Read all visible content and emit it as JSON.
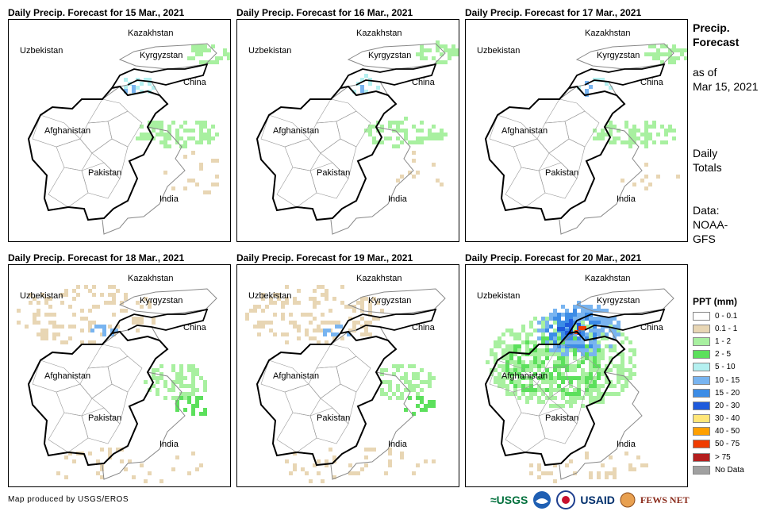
{
  "panels": [
    {
      "title": "Daily Precip. Forecast for 15 Mar., 2021",
      "coverage": "light"
    },
    {
      "title": "Daily Precip. Forecast for 16 Mar., 2021",
      "coverage": "light"
    },
    {
      "title": "Daily Precip. Forecast for 17 Mar., 2021",
      "coverage": "light"
    },
    {
      "title": "Daily Precip. Forecast for 18 Mar., 2021",
      "coverage": "moderate"
    },
    {
      "title": "Daily Precip. Forecast for 19 Mar., 2021",
      "coverage": "moderate"
    },
    {
      "title": "Daily Precip. Forecast for 20 Mar., 2021",
      "coverage": "heavy"
    }
  ],
  "map_labels": {
    "kazakhstan": "Kazakhstan",
    "uzbekistan": "Uzbekistan",
    "kyrgyzstan": "Kyrgyzstan",
    "china": "China",
    "afghanistan": "Afghanistan",
    "pakistan": "Pakistan",
    "india": "India"
  },
  "side": {
    "title_line1": "Precip.",
    "title_line2": "Forecast",
    "asof_line1": "as of",
    "asof_line2": "Mar 15, 2021",
    "daily_line1": "Daily",
    "daily_line2": "Totals",
    "data_line1": "Data:",
    "data_line2": "NOAA-",
    "data_line3": "GFS"
  },
  "legend": {
    "title": "PPT (mm)",
    "items": [
      {
        "label": "0 - 0.1",
        "color": "#ffffff"
      },
      {
        "label": "0.1 - 1",
        "color": "#e8d6b4"
      },
      {
        "label": "1 - 2",
        "color": "#a8f0a0"
      },
      {
        "label": "2 - 5",
        "color": "#5ce05c"
      },
      {
        "label": "5 - 10",
        "color": "#b4f0f0"
      },
      {
        "label": "10 - 15",
        "color": "#78b4f0"
      },
      {
        "label": "15 - 20",
        "color": "#3c8ce6"
      },
      {
        "label": "20 - 30",
        "color": "#1e5adc"
      },
      {
        "label": "30 - 40",
        "color": "#ffe678"
      },
      {
        "label": "40 - 50",
        "color": "#ffa000"
      },
      {
        "label": "50 - 75",
        "color": "#f03c00"
      },
      {
        "label": "> 75",
        "color": "#b41e1e"
      },
      {
        "label": "No Data",
        "color": "#a0a0a0"
      }
    ]
  },
  "credit": "Map produced by USGS/EROS",
  "logos": {
    "usgs": "≈USGS",
    "usaid": "USAID",
    "fewsnet": "FEWS NET"
  }
}
